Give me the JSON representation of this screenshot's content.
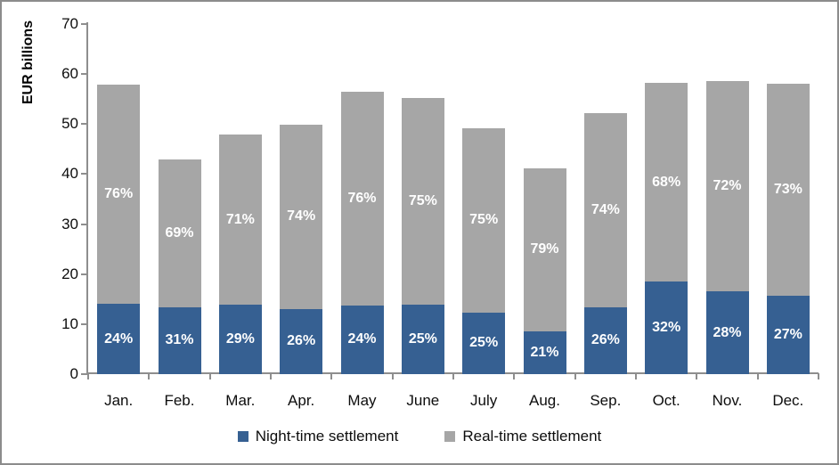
{
  "colors": {
    "night_blue": "#366092",
    "real_gray": "#A6A6A6",
    "axis_line": "#8e8e8e",
    "tick_text": "#0d0d0d",
    "segment_label_text": "#ffffff",
    "frame_border": "#8c8c8c",
    "background": "#ffffff"
  },
  "chart_data": {
    "type": "bar",
    "subtype": "stacked-vertical",
    "title": "",
    "xlabel": "",
    "ylabel": "EUR billions",
    "ylim": [
      0,
      70
    ],
    "yticks": [
      0,
      10,
      20,
      30,
      40,
      50,
      60,
      70
    ],
    "grid": false,
    "legend_position": "bottom",
    "categories": [
      "Jan.",
      "Feb.",
      "Mar.",
      "Apr.",
      "May",
      "June",
      "July",
      "Aug.",
      "Sep.",
      "Oct.",
      "Nov.",
      "Dec."
    ],
    "series": [
      {
        "name": "Night-time settlement",
        "color": "#366092",
        "values": [
          14.0,
          13.4,
          13.9,
          13.0,
          13.8,
          13.9,
          12.3,
          8.6,
          13.4,
          18.5,
          16.5,
          15.7
        ],
        "labels": [
          "24%",
          "31%",
          "29%",
          "26%",
          "24%",
          "25%",
          "25%",
          "21%",
          "26%",
          "32%",
          "28%",
          "27%"
        ]
      },
      {
        "name": "Real-time settlement",
        "color": "#A6A6A6",
        "values": [
          43.8,
          29.6,
          34.0,
          36.9,
          42.7,
          41.4,
          36.9,
          32.5,
          38.7,
          39.7,
          42.1,
          42.3
        ],
        "labels": [
          "76%",
          "69%",
          "71%",
          "74%",
          "76%",
          "75%",
          "75%",
          "79%",
          "74%",
          "68%",
          "72%",
          "73%"
        ]
      }
    ],
    "totals": [
      57.8,
      43.0,
      47.9,
      49.9,
      56.5,
      55.3,
      49.2,
      41.1,
      52.1,
      58.2,
      58.6,
      58.0
    ]
  }
}
